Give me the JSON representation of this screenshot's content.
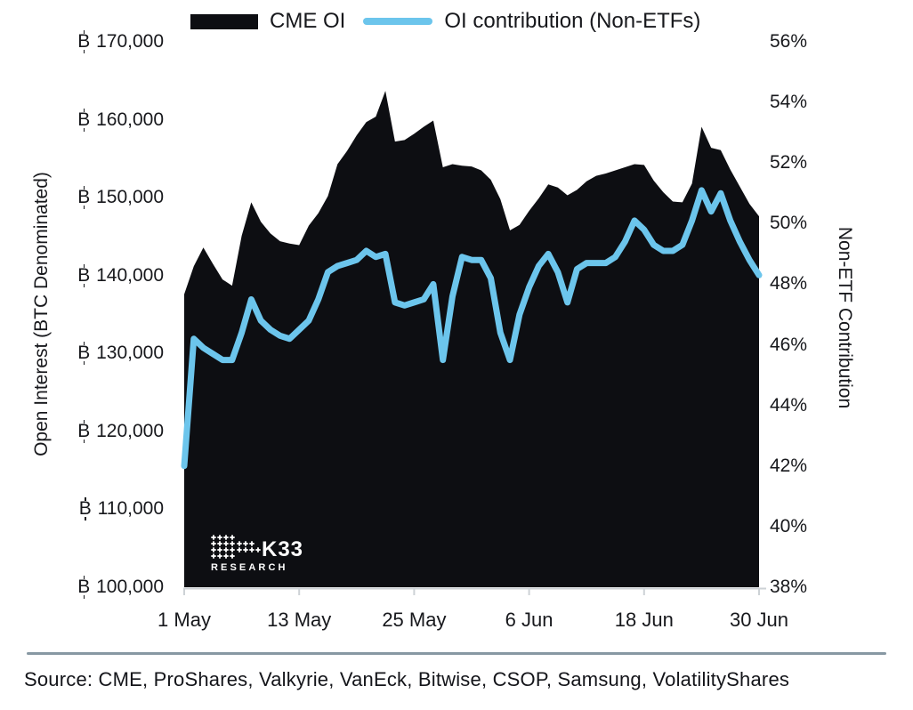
{
  "legend": {
    "items": [
      {
        "label": "CME OI",
        "swatch": "filled-rect",
        "color": "#0d0e12"
      },
      {
        "label": "OI contribution (Non-ETFs)",
        "swatch": "rounded-line",
        "color": "#6cc5ec"
      }
    ]
  },
  "left_axis": {
    "title": "Open Interest (BTC Denominated)",
    "tick_labels": [
      "₿ 170,000",
      "₿ 160,000",
      "₿ 150,000",
      "₿ 140,000",
      "₿ 130,000",
      "₿ 120,000",
      "₿ 110,000",
      "₿ 100,000"
    ]
  },
  "right_axis": {
    "title": "Non-ETF Contribution",
    "tick_labels": [
      "56%",
      "54%",
      "52%",
      "50%",
      "48%",
      "46%",
      "44%",
      "42%",
      "40%",
      "38%"
    ]
  },
  "x_axis": {
    "tick_labels": [
      "1 May",
      "13 May",
      "25 May",
      "6 Jun",
      "18 Jun",
      "30 Jun"
    ]
  },
  "logo": {
    "line1": "K33",
    "line2": "RESEARCH"
  },
  "source": {
    "text": "Source: CME, ProShares, Valkyrie, VanEck, Bitwise, CSOP, Samsung, VolatilityShares"
  },
  "colors": {
    "area": "#0d0e12",
    "line": "#6cc5ec",
    "separator": "#8798a3",
    "axis_line": "#cdd2d6",
    "text": "#17181c",
    "logo": "#ffffff"
  },
  "chart_data": {
    "type": "area+line",
    "title": "",
    "x": [
      "1 May",
      "2 May",
      "3 May",
      "4 May",
      "5 May",
      "6 May",
      "7 May",
      "8 May",
      "9 May",
      "10 May",
      "11 May",
      "12 May",
      "13 May",
      "14 May",
      "15 May",
      "16 May",
      "17 May",
      "18 May",
      "19 May",
      "20 May",
      "21 May",
      "22 May",
      "23 May",
      "24 May",
      "25 May",
      "26 May",
      "27 May",
      "28 May",
      "29 May",
      "30 May",
      "31 May",
      "1 Jun",
      "2 Jun",
      "3 Jun",
      "4 Jun",
      "5 Jun",
      "6 Jun",
      "7 Jun",
      "8 Jun",
      "9 Jun",
      "10 Jun",
      "11 Jun",
      "12 Jun",
      "13 Jun",
      "14 Jun",
      "15 Jun",
      "16 Jun",
      "17 Jun",
      "18 Jun",
      "19 Jun",
      "20 Jun",
      "21 Jun",
      "22 Jun",
      "23 Jun",
      "24 Jun",
      "25 Jun",
      "26 Jun",
      "27 Jun",
      "28 Jun",
      "29 Jun",
      "30 Jun"
    ],
    "x_tick_labels": [
      "1 May",
      "13 May",
      "25 May",
      "6 Jun",
      "18 Jun",
      "30 Jun"
    ],
    "x_tick_indices": [
      0,
      12,
      24,
      36,
      48,
      60
    ],
    "left_axis": {
      "label": "Open Interest (BTC Denominated)",
      "range": [
        100000,
        170000
      ],
      "tick_step": 10000,
      "tick_prefix": "₿ "
    },
    "right_axis": {
      "label": "Non-ETF Contribution",
      "range_pct": [
        38,
        56
      ],
      "tick_step_pct": 2
    },
    "grid": false,
    "legend_position": "top-center",
    "series": [
      {
        "name": "CME OI",
        "type": "area",
        "axis": "left",
        "color": "#0d0e12",
        "values": [
          137600,
          141200,
          143600,
          141500,
          139500,
          138700,
          145100,
          149400,
          146900,
          145400,
          144400,
          144100,
          143900,
          146400,
          148000,
          150200,
          154300,
          156000,
          158000,
          159700,
          160400,
          163700,
          157200,
          157400,
          158200,
          159100,
          159900,
          153900,
          154300,
          154100,
          154000,
          153500,
          152300,
          149800,
          145800,
          146500,
          148300,
          149900,
          151700,
          151300,
          150300,
          151000,
          152100,
          152800,
          153100,
          153500,
          153900,
          154300,
          154200,
          152200,
          150700,
          149500,
          149400,
          151800,
          159100,
          156400,
          156100,
          153600,
          151400,
          149200,
          147600
        ]
      },
      {
        "name": "OI contribution (Non-ETFs)",
        "type": "line",
        "axis": "right",
        "color": "#6cc5ec",
        "values_pct": [
          42.0,
          46.2,
          45.9,
          45.7,
          45.5,
          45.5,
          46.4,
          47.5,
          46.8,
          46.5,
          46.3,
          46.2,
          46.5,
          46.8,
          47.5,
          48.4,
          48.6,
          48.7,
          48.8,
          49.1,
          48.9,
          49.0,
          47.4,
          47.3,
          47.4,
          47.5,
          48.0,
          45.5,
          47.6,
          48.9,
          48.8,
          48.8,
          48.2,
          46.4,
          45.5,
          47.0,
          47.9,
          48.6,
          49.0,
          48.4,
          47.4,
          48.5,
          48.7,
          48.7,
          48.7,
          48.9,
          49.4,
          50.1,
          49.8,
          49.3,
          49.1,
          49.1,
          49.3,
          50.1,
          51.1,
          50.4,
          51.0,
          50.1,
          49.4,
          48.8,
          48.3
        ]
      }
    ]
  }
}
